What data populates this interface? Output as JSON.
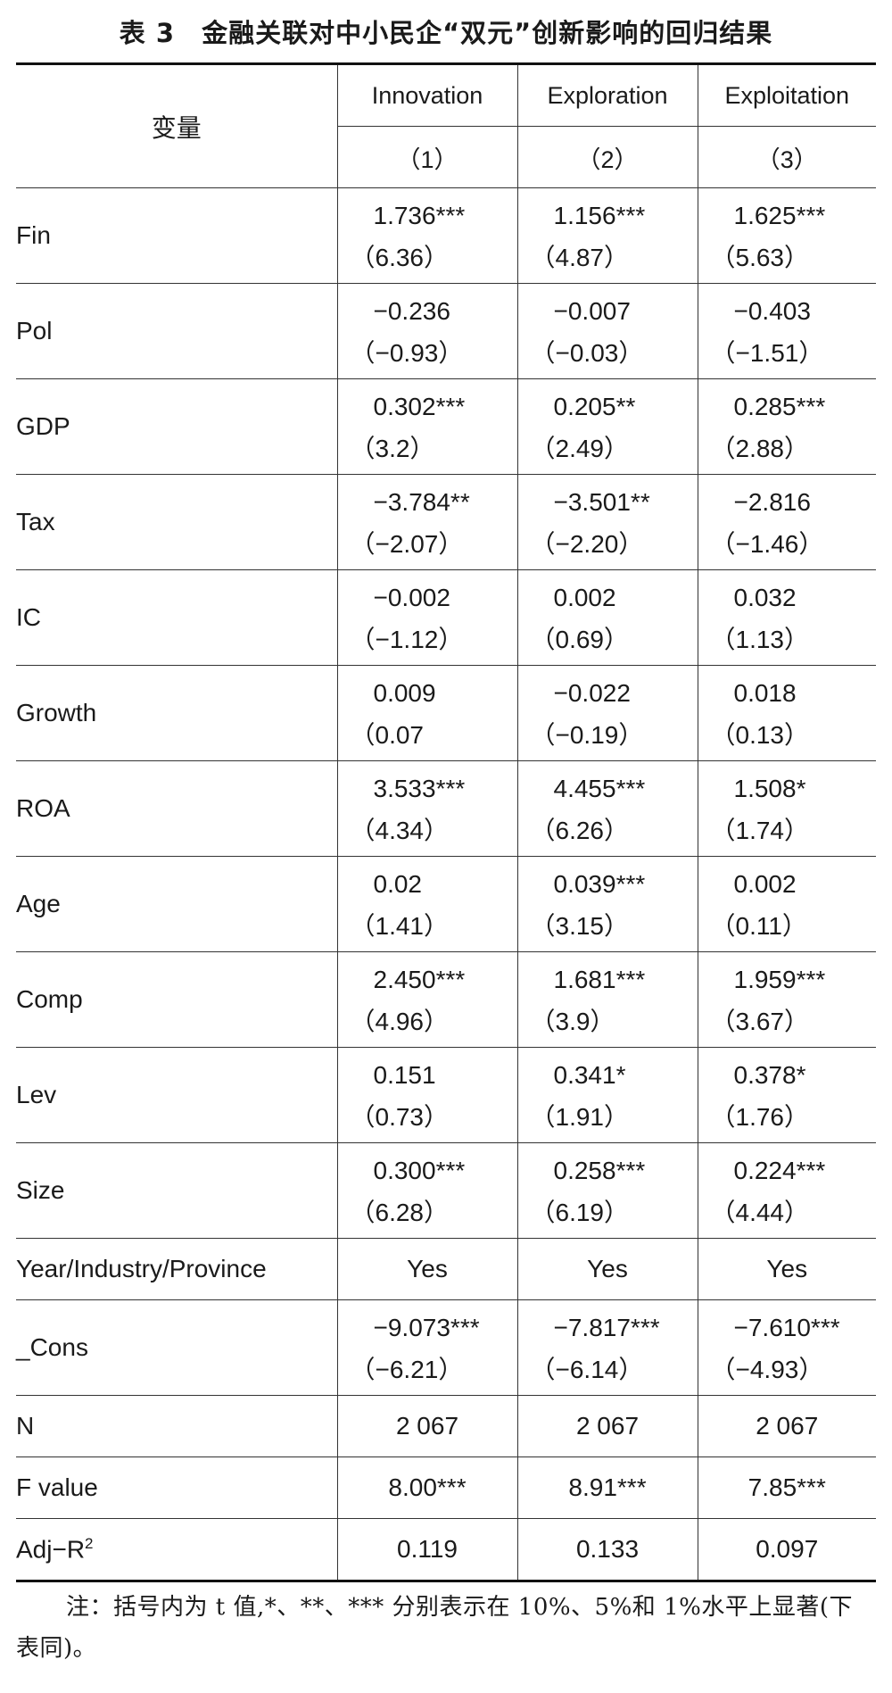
{
  "title": "表 3　金融关联对中小民企“双元”创新影响的回归结果",
  "header": {
    "variable_label": "变量",
    "models": [
      "Innovation",
      "Exploration",
      "Exploitation"
    ],
    "numbers": [
      "（1）",
      "（2）",
      "（3）"
    ]
  },
  "rows": [
    {
      "name": "Fin",
      "c1": "1.736***",
      "t1": "（6.36）",
      "c2": "1.156***",
      "t2": "（4.87）",
      "c3": "1.625***",
      "t3": "（5.63）"
    },
    {
      "name": "Pol",
      "c1": "−0.236",
      "t1": "（−0.93）",
      "c2": "−0.007",
      "t2": "（−0.03）",
      "c3": "−0.403",
      "t3": "（−1.51）"
    },
    {
      "name": "GDP",
      "c1": "0.302***",
      "t1": "（3.2）",
      "c2": "0.205**",
      "t2": "（2.49）",
      "c3": "0.285***",
      "t3": "（2.88）"
    },
    {
      "name": "Tax",
      "c1": "−3.784**",
      "t1": "（−2.07）",
      "c2": "−3.501**",
      "t2": "（−2.20）",
      "c3": "−2.816",
      "t3": "（−1.46）"
    },
    {
      "name": "IC",
      "c1": "−0.002",
      "t1": "（−1.12）",
      "c2": "0.002",
      "t2": "（0.69）",
      "c3": "0.032",
      "t3": "（1.13）"
    },
    {
      "name": "Growth",
      "c1": "0.009",
      "t1": "（0.07",
      "c2": "−0.022",
      "t2": "（−0.19）",
      "c3": "0.018",
      "t3": "（0.13）"
    },
    {
      "name": "ROA",
      "c1": "3.533***",
      "t1": "（4.34）",
      "c2": "4.455***",
      "t2": "（6.26）",
      "c3": "1.508*",
      "t3": "（1.74）"
    },
    {
      "name": "Age",
      "c1": "0.02",
      "t1": "（1.41）",
      "c2": "0.039***",
      "t2": "（3.15）",
      "c3": "0.002",
      "t3": "（0.11）"
    },
    {
      "name": "Comp",
      "c1": "2.450***",
      "t1": "（4.96）",
      "c2": "1.681***",
      "t2": "（3.9）",
      "c3": "1.959***",
      "t3": "（3.67）"
    },
    {
      "name": "Lev",
      "c1": "0.151",
      "t1": "（0.73）",
      "c2": "0.341*",
      "t2": "（1.91）",
      "c3": "0.378*",
      "t3": "（1.76）"
    },
    {
      "name": "Size",
      "c1": "0.300***",
      "t1": "（6.28）",
      "c2": "0.258***",
      "t2": "（6.19）",
      "c3": "0.224***",
      "t3": "（4.44）"
    }
  ],
  "fixed_effects": {
    "name": "Year/Industry/Province",
    "v1": "Yes",
    "v2": "Yes",
    "v3": "Yes"
  },
  "cons": {
    "name": "_Cons",
    "c1": "−9.073***",
    "t1": "（−6.21）",
    "c2": "−7.817***",
    "t2": "（−6.14）",
    "c3": "−7.610***",
    "t3": "（−4.93）"
  },
  "stats": [
    {
      "name": "N",
      "v1": "2 067",
      "v2": "2 067",
      "v3": "2 067"
    },
    {
      "name": "F value",
      "v1": "8.00***",
      "v2": "8.91***",
      "v3": "7.85***"
    }
  ],
  "adjr2": {
    "name": "Adj−R",
    "sup": "2",
    "v1": "0.119",
    "v2": "0.133",
    "v3": "0.097"
  },
  "note": "注：括号内为 t 值,*、**、*** 分别表示在 10%、5%和 1%水平上显著(下表同)。"
}
